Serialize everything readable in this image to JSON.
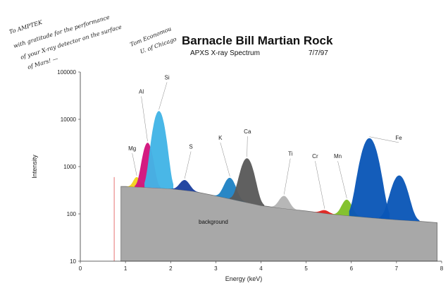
{
  "chart_data": {
    "type": "area",
    "title": "Barnacle Bill Martian Rock",
    "subtitle": "APXS X-ray Spectrum",
    "date": "7/7/97",
    "xlabel": "Energy (keV)",
    "ylabel": "Intensity",
    "xlim": [
      0,
      8
    ],
    "ylim": [
      10,
      100000
    ],
    "yscale": "log",
    "x_ticks": [
      "0",
      "1",
      "2",
      "3",
      "4",
      "5",
      "6",
      "7",
      "8"
    ],
    "y_ticks": [
      "10",
      "100",
      "1000",
      "10000",
      "100000"
    ],
    "grid": false,
    "background_label": "background",
    "background": {
      "x": [
        0.9,
        1.0,
        1.5,
        2.0,
        2.5,
        3.0,
        3.5,
        4.0,
        4.5,
        5.0,
        5.5,
        6.0,
        6.5,
        7.0,
        7.5,
        7.9
      ],
      "values": [
        380,
        380,
        360,
        340,
        300,
        240,
        190,
        150,
        130,
        115,
        100,
        90,
        82,
        75,
        70,
        65
      ]
    },
    "peaks": [
      {
        "element": "Mg",
        "energy": 1.25,
        "peak": 600,
        "color": "#f2d21b"
      },
      {
        "element": "Al",
        "energy": 1.49,
        "peak": 3200,
        "color": "#d1137c"
      },
      {
        "element": "Si",
        "energy": 1.74,
        "peak": 15000,
        "color": "#42b4e6"
      },
      {
        "element": "S",
        "energy": 2.31,
        "peak": 520,
        "color": "#1c3f9e"
      },
      {
        "element": "K",
        "energy": 3.31,
        "peak": 580,
        "color": "#1f82c4"
      },
      {
        "element": "Ca",
        "energy": 3.69,
        "peak": 1500,
        "color": "#5a5a5a"
      },
      {
        "element": "Ti",
        "energy": 4.51,
        "peak": 240,
        "color": "#b4b4b4"
      },
      {
        "element": "Cr",
        "energy": 5.41,
        "peak": 120,
        "color": "#e0231f"
      },
      {
        "element": "Mn",
        "energy": 5.9,
        "peak": 200,
        "color": "#7fbf27"
      },
      {
        "element": "Fe",
        "energy": 6.4,
        "peak": 4000,
        "color": "#0a56b7"
      },
      {
        "element": "Fe",
        "energy": 7.06,
        "peak": 650,
        "color": "#0a56b7"
      }
    ],
    "labels": [
      "Mg",
      "Al",
      "Si",
      "S",
      "K",
      "Ca",
      "Ti",
      "Cr",
      "Mn",
      "Fe"
    ]
  },
  "inscription": {
    "line1": "To AMPTEK",
    "line2": "with gratitude for the performance",
    "line3": "of your X-ray detector on the surface",
    "line4": "of Mars! —",
    "signature": "Tom Economou",
    "affiliation": "U. of Chicago"
  },
  "colors": {
    "background_fill": "#a8a8a8",
    "background_edge": "#6e6e6e",
    "marker_line": "#e05050"
  }
}
